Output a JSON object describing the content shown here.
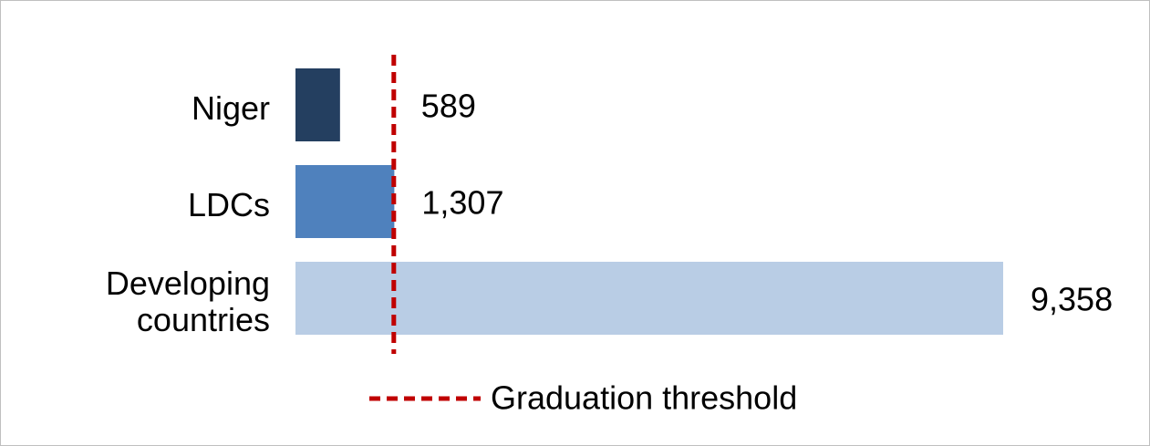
{
  "chart_data": {
    "type": "bar",
    "orientation": "horizontal",
    "categories": [
      "Niger",
      "LDCs",
      "Developing countries"
    ],
    "values": [
      589,
      1307,
      9358
    ],
    "value_labels": [
      "589",
      "1,307",
      "9,358"
    ],
    "colors": [
      "#243f60",
      "#4f81bd",
      "#b9cde5"
    ],
    "threshold": {
      "name": "Graduation threshold",
      "value": 1300,
      "color": "#c00000"
    }
  }
}
